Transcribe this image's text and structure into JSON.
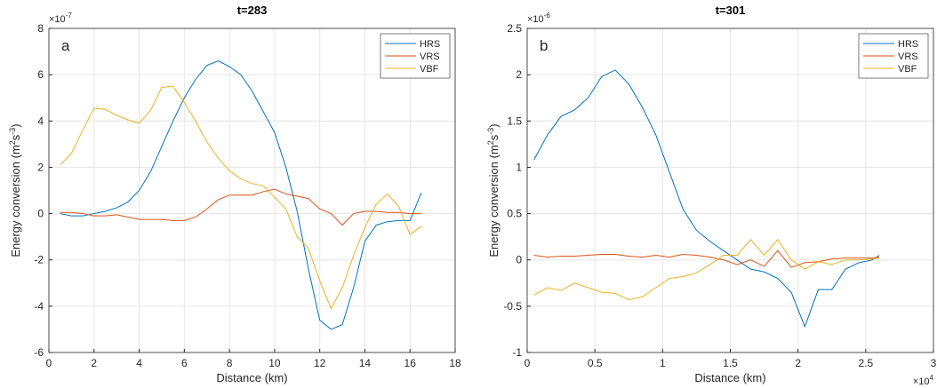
{
  "chart_data": [
    {
      "type": "line",
      "title": "t=283",
      "panel_label": "a",
      "xlabel": "Distance (km)",
      "ylabel": [
        "Energy conversion (m",
        "2",
        "s",
        "-3",
        ")"
      ],
      "y_exponent": {
        "base": "×10",
        "power": "-7"
      },
      "xlim": [
        0,
        18
      ],
      "xticks": [
        0,
        2,
        4,
        6,
        8,
        10,
        12,
        14,
        16,
        18
      ],
      "ylim": [
        -6,
        8
      ],
      "yticks": [
        -6,
        -4,
        -2,
        0,
        2,
        4,
        6,
        8
      ],
      "grid": true,
      "legend_loc": "upper right",
      "x": [
        0.5,
        1,
        1.5,
        2,
        2.5,
        3,
        3.5,
        4,
        4.5,
        5,
        5.5,
        6,
        6.5,
        7,
        7.5,
        8,
        8.5,
        9,
        9.5,
        10,
        10.5,
        11,
        11.5,
        12,
        12.5,
        13,
        13.5,
        14,
        14.5,
        15,
        15.5,
        16,
        16.5
      ],
      "series": [
        {
          "name": "HRS",
          "color": "#0072BD",
          "values": [
            0,
            -0.1,
            -0.1,
            0,
            0.1,
            0.25,
            0.5,
            1.0,
            1.8,
            2.9,
            4.0,
            5.0,
            5.8,
            6.4,
            6.6,
            6.35,
            6.0,
            5.3,
            4.4,
            3.5,
            2.0,
            0.1,
            -2.4,
            -4.6,
            -5.0,
            -4.8,
            -3.2,
            -1.2,
            -0.5,
            -0.35,
            -0.3,
            -0.3,
            0.9
          ]
        },
        {
          "name": "VRS",
          "color": "#D95319",
          "values": [
            0.05,
            0.05,
            0,
            -0.1,
            -0.1,
            -0.05,
            -0.15,
            -0.25,
            -0.25,
            -0.25,
            -0.3,
            -0.3,
            -0.15,
            0.2,
            0.6,
            0.8,
            0.8,
            0.8,
            0.95,
            1.05,
            0.85,
            0.75,
            0.65,
            0.2,
            0,
            -0.5,
            0,
            0.1,
            0.1,
            0.05,
            0.05,
            0,
            0
          ]
        },
        {
          "name": "VBF",
          "color": "#EDB120",
          "values": [
            2.1,
            2.6,
            3.6,
            4.55,
            4.5,
            4.25,
            4.05,
            3.9,
            4.45,
            5.45,
            5.5,
            4.8,
            4.0,
            3.1,
            2.4,
            1.85,
            1.5,
            1.3,
            1.2,
            0.7,
            0.2,
            -1.0,
            -1.5,
            -2.9,
            -4.1,
            -3.2,
            -1.8,
            -0.6,
            0.4,
            0.85,
            0.3,
            -0.9,
            -0.55
          ]
        }
      ]
    },
    {
      "type": "line",
      "title": "t=301",
      "panel_label": "b",
      "xlabel": "Distance (km)",
      "ylabel": [
        "Energy conversion (m",
        "2",
        "s",
        "-3",
        ")"
      ],
      "y_exponent": {
        "base": "×10",
        "power": "-6"
      },
      "x_exponent": {
        "base": "×10",
        "power": "4"
      },
      "xlim": [
        0,
        3
      ],
      "xticks": [
        0,
        0.5,
        1,
        1.5,
        2,
        2.5,
        3
      ],
      "ylim": [
        -1,
        2.5
      ],
      "yticks": [
        -1,
        -0.5,
        0,
        0.5,
        1,
        1.5,
        2,
        2.5
      ],
      "grid": true,
      "legend_loc": "upper right",
      "x": [
        0.05,
        0.15,
        0.25,
        0.35,
        0.45,
        0.55,
        0.65,
        0.75,
        0.85,
        0.95,
        1.05,
        1.15,
        1.25,
        1.35,
        1.45,
        1.55,
        1.65,
        1.75,
        1.85,
        1.95,
        2.05,
        2.15,
        2.25,
        2.35,
        2.45,
        2.55,
        2.6
      ],
      "series": [
        {
          "name": "HRS",
          "color": "#0072BD",
          "values": [
            1.08,
            1.35,
            1.55,
            1.62,
            1.75,
            1.98,
            2.05,
            1.9,
            1.65,
            1.35,
            0.95,
            0.55,
            0.32,
            0.2,
            0.1,
            0.0,
            -0.1,
            -0.13,
            -0.2,
            -0.35,
            -0.72,
            -0.32,
            -0.32,
            -0.1,
            -0.03,
            0.0,
            0.05
          ]
        },
        {
          "name": "VRS",
          "color": "#D95319",
          "values": [
            0.05,
            0.03,
            0.04,
            0.04,
            0.05,
            0.06,
            0.06,
            0.04,
            0.03,
            0.05,
            0.03,
            0.06,
            0.05,
            0.03,
            0.0,
            -0.05,
            0.0,
            -0.07,
            0.1,
            -0.08,
            -0.03,
            -0.02,
            0.01,
            0.02,
            0.02,
            0.02,
            0.03
          ]
        },
        {
          "name": "VBF",
          "color": "#EDB120",
          "values": [
            -0.38,
            -0.3,
            -0.33,
            -0.25,
            -0.3,
            -0.35,
            -0.36,
            -0.43,
            -0.4,
            -0.3,
            -0.2,
            -0.18,
            -0.14,
            -0.05,
            0.05,
            0.05,
            0.22,
            0.05,
            0.22,
            0.0,
            -0.1,
            -0.02,
            -0.05,
            0.0,
            0.0,
            0.01,
            0.02
          ]
        }
      ]
    }
  ]
}
